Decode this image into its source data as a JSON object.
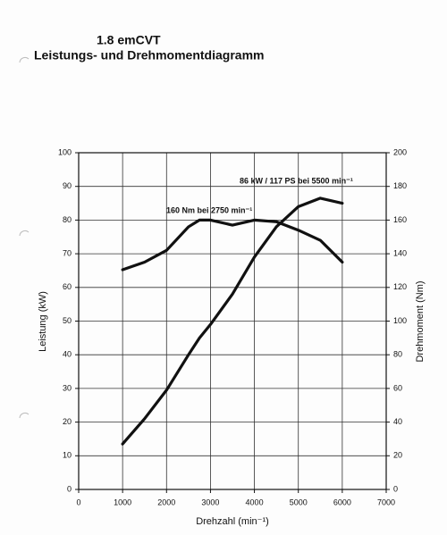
{
  "chart_data": {
    "type": "line",
    "title": "1.8 emCVT",
    "subtitle": "Leistungs- und Drehmomentdiagramm",
    "xlabel": "Drehzahl (min⁻¹)",
    "ylabel": "Leistung (kW)",
    "y2label": "Drehmoment (Nm)",
    "annotations": [
      "160 Nm bei 2750 min⁻¹",
      "86 kW / 117 PS bei 5500 min⁻¹"
    ],
    "x": [
      1000,
      1500,
      2000,
      2500,
      2750,
      3000,
      3500,
      4000,
      4500,
      5000,
      5500,
      6000
    ],
    "series": [
      {
        "color": "#111111",
        "values": [
          13.5,
          21,
          29.5,
          40,
          45,
          49,
          58,
          69,
          78,
          84,
          86.5,
          85
        ]
      },
      {
        "color": "#111111",
        "axis": "y2",
        "values": [
          130.5,
          135,
          142,
          156,
          160,
          160,
          157,
          160,
          159,
          154,
          148,
          135
        ]
      }
    ],
    "xlim": [
      0,
      7000
    ],
    "xticks": [
      0,
      1000,
      2000,
      3000,
      4000,
      5000,
      6000,
      7000
    ],
    "ylim": [
      0,
      100
    ],
    "yticks": [
      0,
      10,
      20,
      30,
      40,
      50,
      60,
      70,
      80,
      90,
      100
    ],
    "y2lim": [
      0,
      200
    ],
    "y2ticks": [
      0,
      20,
      40,
      60,
      80,
      100,
      120,
      140,
      160,
      180,
      200
    ],
    "grid": true
  }
}
